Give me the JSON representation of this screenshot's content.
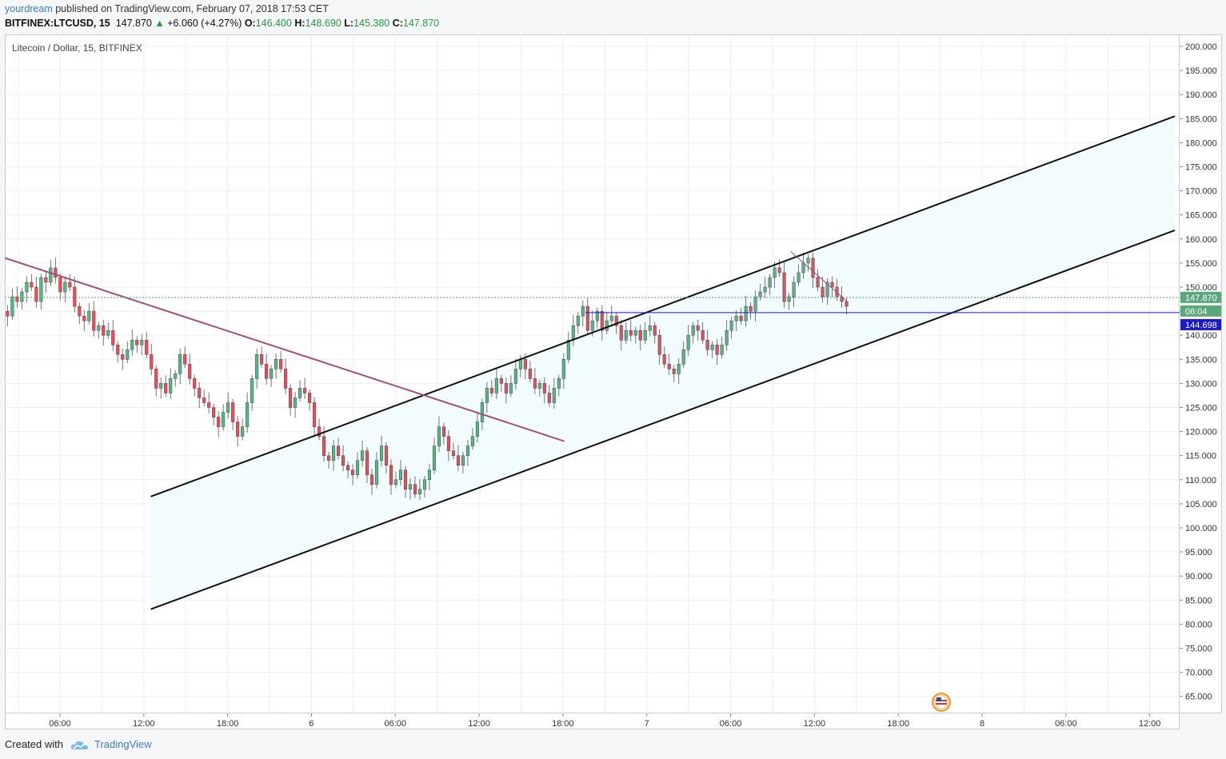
{
  "header": {
    "author": "yourdream",
    "published_text": "published on TradingView.com, February 07, 2018 17:53 CET",
    "symbol": "BITFINEX:LTCUSD, 15",
    "last": "147.870",
    "up_arrow": "▲",
    "change": "+6.060 (+4.27%)",
    "open_label": "O:",
    "open": "146.400",
    "high_label": "H:",
    "high": "148.690",
    "low_label": "L:",
    "low": "145.380",
    "close_label": "C:",
    "close": "147.870"
  },
  "instrument_label": "Litecoin / Dollar, 15, BITFINEX",
  "footer": {
    "created_with": "Created with",
    "brand": "TradingView"
  },
  "colors": {
    "up": "#53b987",
    "down": "#eb4d5c",
    "channel": "#111111",
    "trendline": "#a0507a",
    "hline": "#1a1acc",
    "price_label_bg": "#5aa77b",
    "hline_label_bg": "#1a1acc",
    "channel_fill": "#f2fbfd",
    "grid": "#eceef1"
  },
  "price_labels": {
    "last": "147.870",
    "countdown": "06:04",
    "hline": "144.698"
  },
  "chart_data": {
    "type": "candlestick",
    "title": "Litecoin / Dollar, 15, BITFINEX",
    "ylim": [
      60,
      201
    ],
    "y_ticks": [
      "200.000",
      "195.000",
      "190.000",
      "185.000",
      "180.000",
      "175.000",
      "170.000",
      "165.000",
      "160.000",
      "155.000",
      "150.000",
      "145.000",
      "140.000",
      "135.000",
      "130.000",
      "125.000",
      "120.000",
      "115.000",
      "110.000",
      "105.000",
      "100.000",
      "95.000",
      "90.000",
      "85.000",
      "80.000",
      "75.000",
      "70.000",
      "65.000"
    ],
    "x_ticks": [
      "06:00",
      "12:00",
      "18:00",
      "6",
      "06:00",
      "12:00",
      "18:00",
      "7",
      "06:00",
      "12:00",
      "18:00",
      "8",
      "06:00",
      "12:00"
    ],
    "x_tick_hours": [
      6,
      12,
      18,
      24,
      30,
      36,
      42,
      48,
      54,
      60,
      66,
      72,
      78,
      84
    ],
    "x_range_hours": [
      1.9,
      85
    ],
    "legend": "none",
    "grid": true,
    "drawings": {
      "channel_upper": [
        [
          12.5,
          106.5
        ],
        [
          85.8,
          185.5
        ]
      ],
      "channel_lower": [
        [
          12.5,
          83.1
        ],
        [
          85.8,
          161.8
        ]
      ],
      "downtrend_line": [
        [
          1.9,
          156.2
        ],
        [
          42.1,
          118.0
        ]
      ],
      "small_downtrend": [
        [
          58.3,
          157.4
        ],
        [
          62.3,
          147.1
        ]
      ],
      "horizontal_level": {
        "price": 144.698,
        "from_hour": 43.6
      }
    },
    "closes": [
      145,
      144,
      148,
      147,
      149,
      151,
      150,
      147,
      152,
      151,
      154,
      152,
      149,
      151,
      150,
      146,
      144,
      143,
      145,
      141,
      142,
      140,
      141,
      138,
      136,
      135,
      137,
      139,
      138,
      139,
      136,
      133,
      129,
      130,
      128,
      131,
      132,
      136,
      134,
      131,
      129,
      127,
      126,
      125,
      123,
      121,
      124,
      126,
      122,
      119,
      121,
      126,
      131,
      136,
      134,
      131,
      133,
      135,
      133,
      129,
      125,
      127,
      129,
      128,
      126,
      121,
      119,
      115,
      114,
      117,
      115,
      113,
      112,
      111,
      114,
      116,
      111,
      109,
      114,
      117,
      113,
      109,
      110,
      112,
      108,
      109,
      107,
      108,
      110,
      112,
      117,
      121,
      119,
      116,
      115,
      113,
      115,
      117,
      119,
      122,
      126,
      129,
      128,
      131,
      130,
      128,
      130,
      133,
      135,
      133,
      131,
      129,
      130,
      128,
      126,
      129,
      131,
      135,
      139,
      142,
      144,
      146,
      141,
      143,
      145,
      141,
      143,
      144,
      142,
      139,
      141,
      140,
      141,
      139,
      141,
      142,
      140,
      136,
      134,
      133,
      132,
      134,
      137,
      140,
      142,
      141,
      139,
      137,
      138,
      136,
      138,
      141,
      143,
      144,
      143,
      146,
      145,
      148,
      149,
      150,
      152,
      154,
      153,
      147,
      148,
      151,
      153,
      155,
      156,
      152,
      150,
      148,
      151,
      150,
      148,
      147,
      146
    ]
  }
}
